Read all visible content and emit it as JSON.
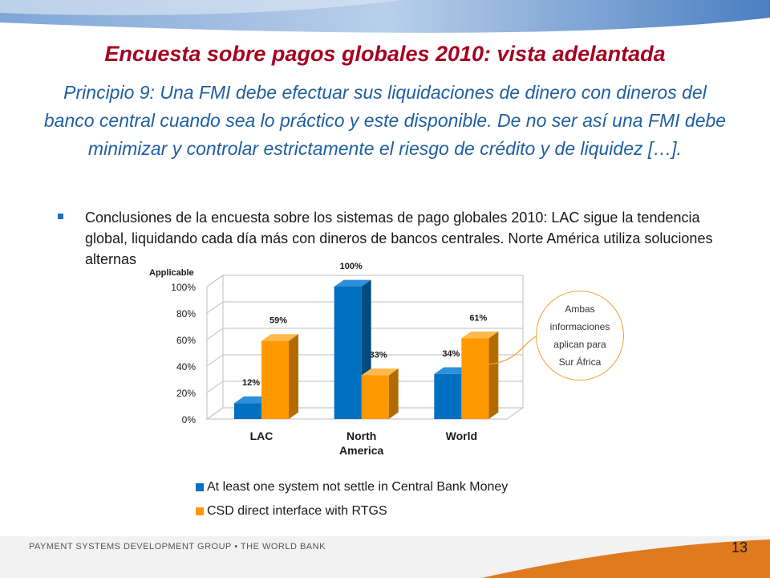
{
  "slide": {
    "title": "Encuesta sobre pagos globales 2010: vista adelantada",
    "subtitle": "Principio 9: Una FMI debe efectuar sus liquidaciones de dinero con dineros del banco central cuando sea lo práctico y este disponible. De no ser así una FMI debe minimizar y controlar estrictamente el riesgo de crédito y de liquidez […].",
    "bullet": "Conclusiones de la encuesta sobre los sistemas de pago globales 2010: LAC sigue la tendencia global, liquidando cada día más con dineros de bancos centrales. Norte América utiliza soluciones alternas",
    "callout": "Ambas informaciones aplican para Sur África",
    "footer": "PAYMENT SYSTEMS DEVELOPMENT GROUP • THE WORLD BANK",
    "page_number": "13"
  },
  "colors": {
    "title": "#A50021",
    "subtitle": "#1F5FA0",
    "series_blue": "#0070C0",
    "series_orange": "#FF9900",
    "footer_orange": "#E07A1F"
  },
  "chart_data": {
    "type": "bar",
    "title": "",
    "ylabel": "Applicable",
    "categories": [
      "LAC",
      "North America",
      "World"
    ],
    "category_lines": [
      [
        "LAC"
      ],
      [
        "North",
        "America"
      ],
      [
        "World"
      ]
    ],
    "yticks": [
      "0%",
      "20%",
      "40%",
      "60%",
      "80%",
      "100%"
    ],
    "ylim": [
      0,
      100
    ],
    "grid": true,
    "legend_position": "bottom",
    "series": [
      {
        "name": "At least one system not settle in Central Bank Money",
        "values": [
          12,
          100,
          34
        ],
        "labels": [
          "12%",
          "100%",
          "34%"
        ]
      },
      {
        "name": "CSD direct interface with RTGS",
        "values": [
          59,
          33,
          61
        ],
        "labels": [
          "59%",
          "33%",
          "61%"
        ]
      }
    ]
  }
}
